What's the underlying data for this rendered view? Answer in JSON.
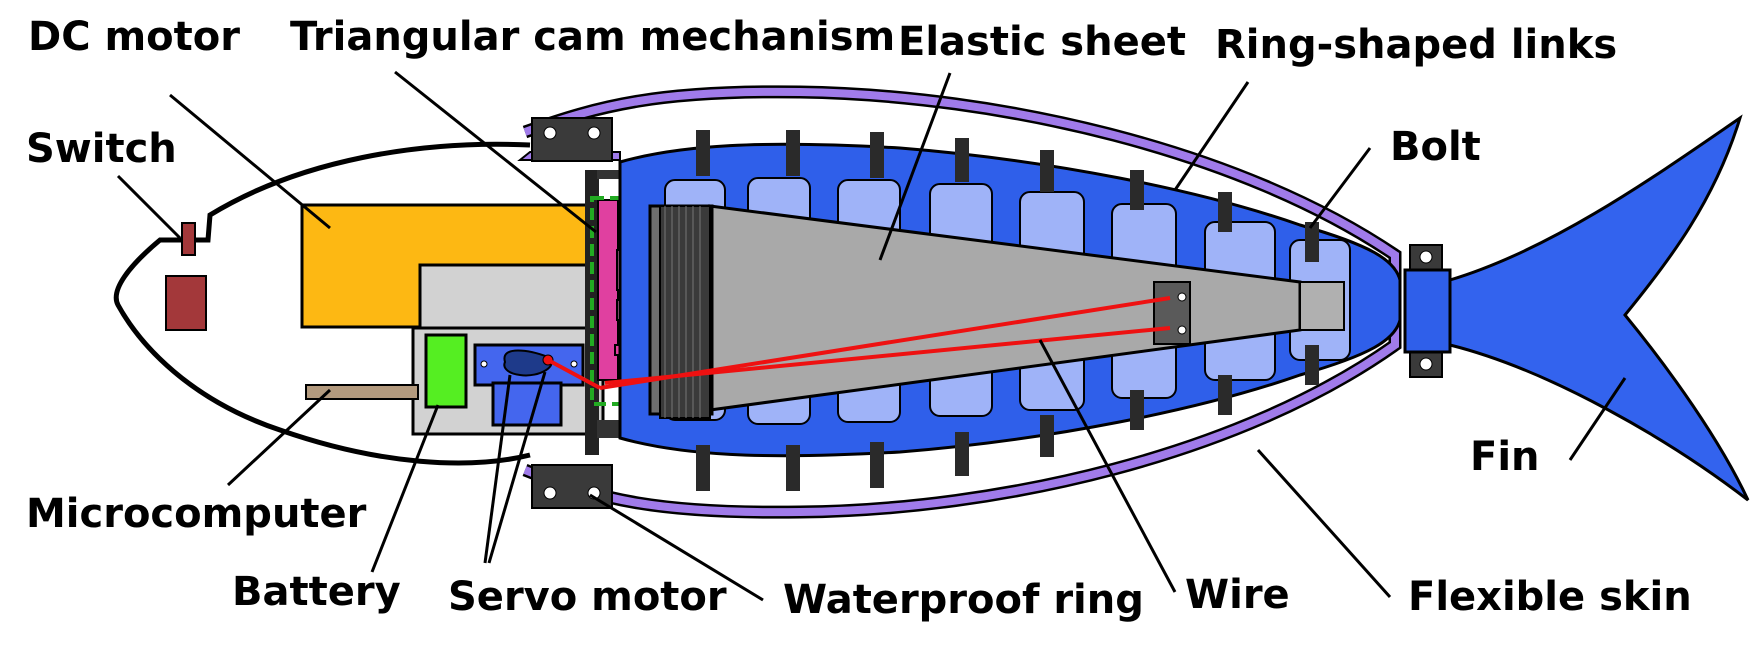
{
  "labels": {
    "dc_motor": "DC motor",
    "triangular_cam": "Triangular cam mechanism",
    "elastic_sheet": "Elastic sheet",
    "ring_links": "Ring-shaped links",
    "switch": "Switch",
    "bolt": "Bolt",
    "fin": "Fin",
    "microcomputer": "Microcomputer",
    "battery": "Battery",
    "servo_motor": "Servo motor",
    "waterproof_ring": "Waterproof ring",
    "wire": "Wire",
    "flexible_skin": "Flexible skin"
  },
  "colors": {
    "dc_motor": "#FDB813",
    "switch": "#A3383A",
    "battery": "#55EE22",
    "servo": "#4466EE",
    "links_dark": "#2F5FEA",
    "links_light": "#9FB3F8",
    "elastic_sheet": "#A9A9A9",
    "skin": "#A07BEA",
    "fin": "#3363EE",
    "cam": "#E040A0",
    "wire": "#EE1111",
    "dashed_box": "#22AA22"
  }
}
